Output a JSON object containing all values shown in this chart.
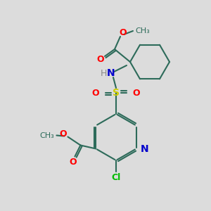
{
  "background_color": "#dcdcdc",
  "bond_color": "#2d6b5a",
  "atom_colors": {
    "O": "#ff0000",
    "N": "#0000cc",
    "S": "#cccc00",
    "Cl": "#00bb00",
    "H": "#888888",
    "C": "#2d6b5a"
  },
  "figsize": [
    3.0,
    3.0
  ],
  "dpi": 100
}
